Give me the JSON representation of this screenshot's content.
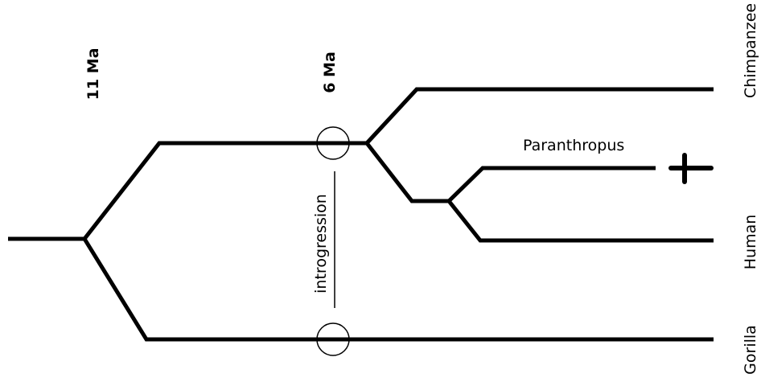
{
  "time_labels": {
    "older": "11 Ma",
    "younger": "6 Ma"
  },
  "taxa": {
    "chimpanzee": "Chimpanzee",
    "human": "Human",
    "gorilla": "Gorilla",
    "paranthropus": "Paranthropus"
  },
  "event": {
    "label": "introgression"
  },
  "icons": {
    "extinct": "dagger-icon"
  },
  "colors": {
    "line": "#000000",
    "background": "#ffffff"
  }
}
